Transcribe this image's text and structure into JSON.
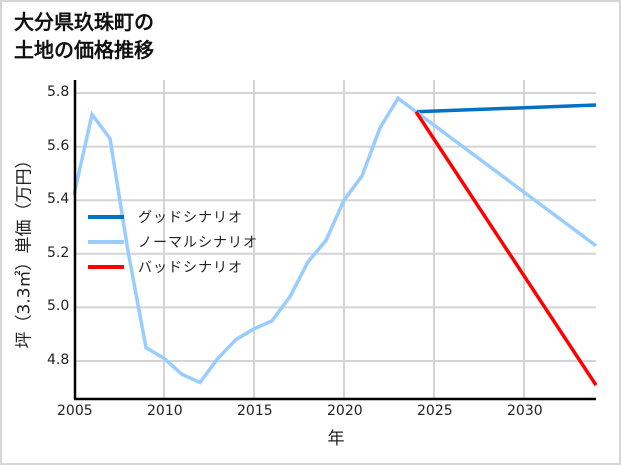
{
  "title_line1": "大分県玖珠町の",
  "title_line2": "土地の価格推移",
  "chart_data": {
    "type": "line",
    "title": "大分県玖珠町の土地の価格推移",
    "xlabel": "年",
    "ylabel": "坪（3.3㎡）単価（万円）",
    "xlim": [
      2005,
      2034
    ],
    "ylim": [
      4.66,
      5.84
    ],
    "x_ticks": [
      "2005",
      "2010",
      "2015",
      "2020",
      "2025",
      "2030"
    ],
    "y_ticks": [
      "4.8",
      "5.0",
      "5.2",
      "5.4",
      "5.6",
      "5.8"
    ],
    "grid": true,
    "legend_position": "upper-left-inside",
    "series": [
      {
        "name": "グッドシナリオ",
        "color": "#0072c6",
        "x": [
          2024,
          2034
        ],
        "values": [
          5.73,
          5.755
        ]
      },
      {
        "name": "ノーマルシナリオ",
        "color": "#99ccff",
        "x": [
          2005,
          2006,
          2007,
          2008,
          2009,
          2010,
          2011,
          2012,
          2013,
          2014,
          2015,
          2016,
          2017,
          2018,
          2019,
          2020,
          2021,
          2022,
          2023,
          2024,
          2034
        ],
        "values": [
          5.42,
          5.72,
          5.63,
          5.21,
          4.85,
          4.81,
          4.75,
          4.72,
          4.81,
          4.88,
          4.92,
          4.95,
          5.04,
          5.17,
          5.25,
          5.4,
          5.49,
          5.67,
          5.78,
          5.73,
          5.23
        ]
      },
      {
        "name": "バッドシナリオ",
        "color": "#ff0000",
        "x": [
          2024,
          2034
        ],
        "values": [
          5.73,
          4.71
        ]
      }
    ]
  }
}
